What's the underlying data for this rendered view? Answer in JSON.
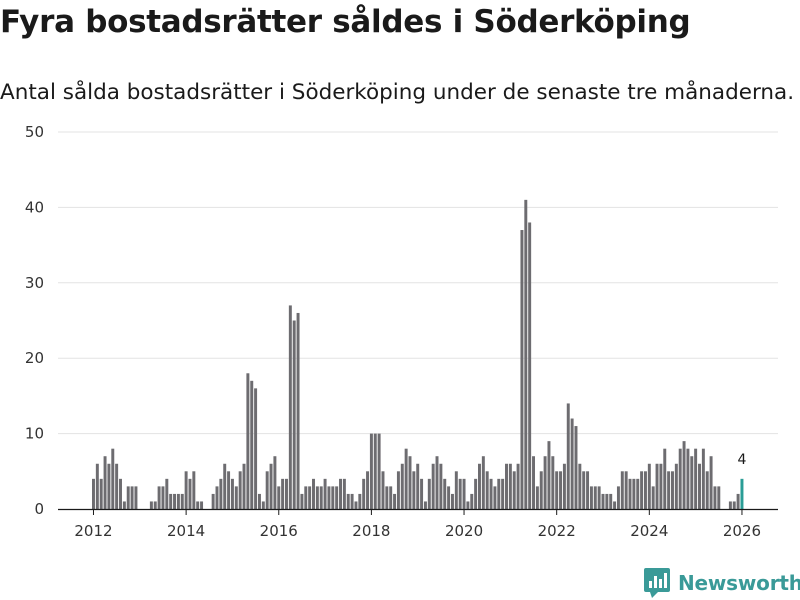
{
  "header": {
    "title": "Fyra bostadsrätter såldes i Söderköping",
    "subtitle": "Antal sålda bostadsrätter i Söderköping under de senaste tre månaderna."
  },
  "brand": {
    "name": "Newsworthy",
    "color": "#3a9a98"
  },
  "colors": {
    "bar": "#6d6c70",
    "highlight": "#2a9d96",
    "grid": "#e3e3e3"
  },
  "chart_data": {
    "type": "bar",
    "title": "Fyra bostadsrätter såldes i Söderköping",
    "xlabel": "",
    "ylabel": "",
    "ylim": [
      0,
      50
    ],
    "yticks": [
      0,
      10,
      20,
      30,
      40,
      50
    ],
    "xticks": [
      "2012",
      "2014",
      "2016",
      "2018",
      "2020",
      "2022",
      "2024",
      "2026"
    ],
    "start": "2012-01",
    "highlight_label": "4",
    "values": [
      4,
      6,
      4,
      7,
      6,
      8,
      6,
      4,
      1,
      3,
      3,
      3,
      0,
      0,
      0,
      1,
      1,
      3,
      3,
      4,
      2,
      2,
      2,
      2,
      5,
      4,
      5,
      1,
      1,
      0,
      0,
      2,
      3,
      4,
      6,
      5,
      4,
      3,
      5,
      6,
      18,
      17,
      16,
      2,
      1,
      5,
      6,
      7,
      3,
      4,
      4,
      27,
      25,
      26,
      2,
      3,
      3,
      4,
      3,
      3,
      4,
      3,
      3,
      3,
      4,
      4,
      2,
      2,
      1,
      2,
      4,
      5,
      10,
      10,
      10,
      5,
      3,
      3,
      2,
      5,
      6,
      8,
      7,
      5,
      6,
      4,
      1,
      4,
      6,
      7,
      6,
      4,
      3,
      2,
      5,
      4,
      4,
      1,
      2,
      4,
      6,
      7,
      5,
      4,
      3,
      4,
      4,
      6,
      6,
      5,
      6,
      37,
      41,
      38,
      7,
      3,
      5,
      7,
      9,
      7,
      5,
      5,
      6,
      14,
      12,
      11,
      6,
      5,
      5,
      3,
      3,
      3,
      2,
      2,
      2,
      1,
      3,
      5,
      5,
      4,
      4,
      4,
      5,
      5,
      6,
      3,
      6,
      6,
      8,
      5,
      5,
      6,
      8,
      9,
      8,
      7,
      8,
      6,
      8,
      5,
      7,
      3,
      3,
      0,
      0,
      1,
      1,
      2,
      4
    ]
  }
}
